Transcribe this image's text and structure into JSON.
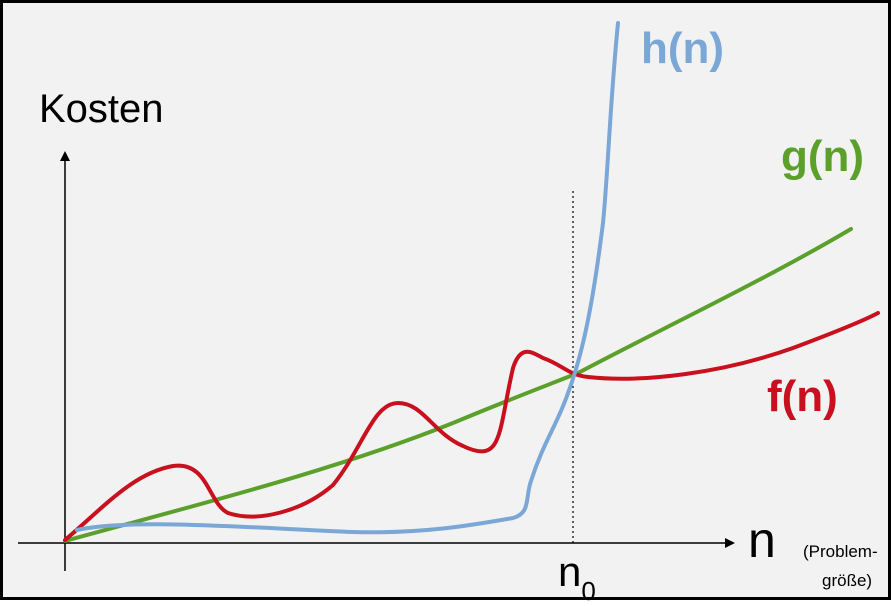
{
  "axes": {
    "y_label": "Kosten",
    "x_label": "n",
    "x_label_note_1": "(Problem-",
    "x_label_note_2": "größe)",
    "n0_main": "n",
    "n0_sub": "0"
  },
  "functions": [
    {
      "key": "h",
      "label": "h(n)",
      "color": "#7ba7d6",
      "description": "grows extremely fast after n0"
    },
    {
      "key": "g",
      "label": "g(n)",
      "color": "#5ca02c",
      "description": "steadily increasing"
    },
    {
      "key": "f",
      "label": "f(n)",
      "color": "#c8101e",
      "description": "oscillating, flattening after n0"
    }
  ],
  "colors": {
    "background": "#f2f2f2",
    "axis": "#000000"
  }
}
